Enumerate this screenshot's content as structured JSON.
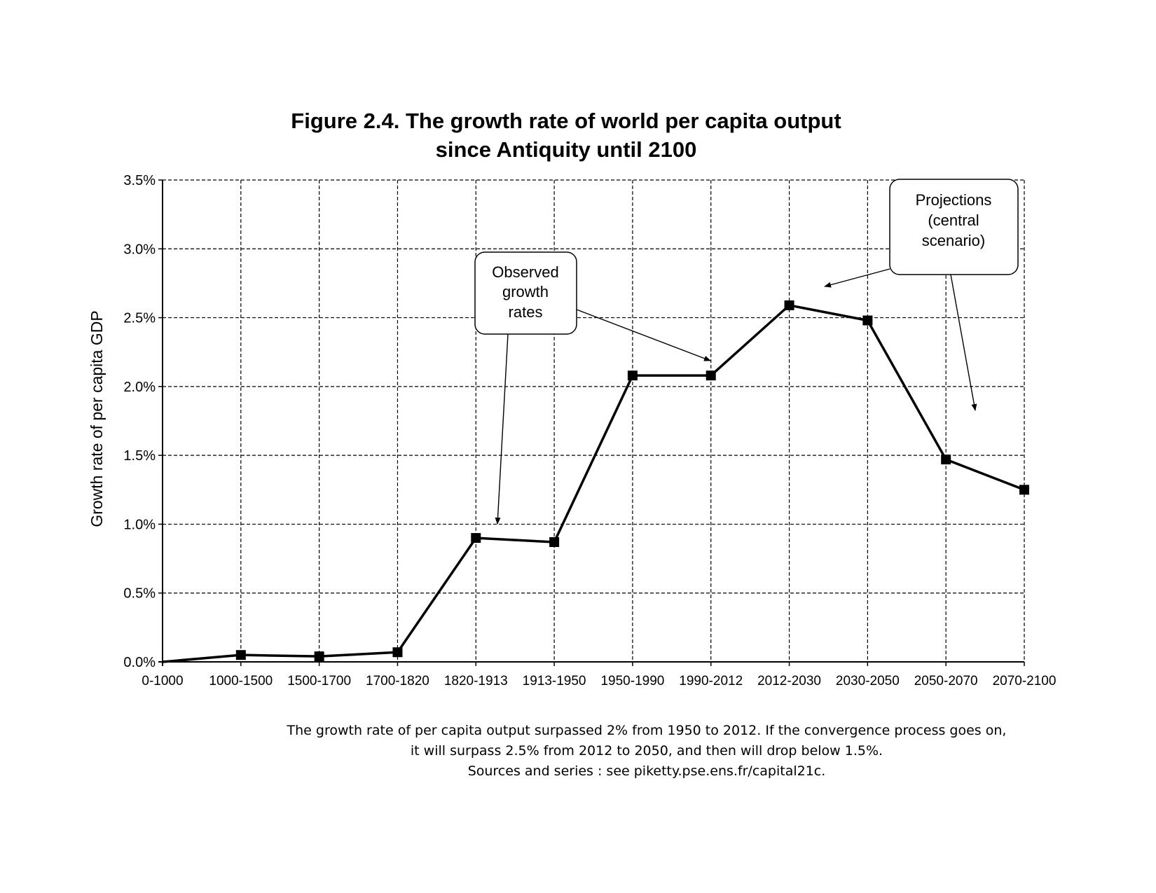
{
  "chart_data": {
    "type": "line",
    "title_lines": [
      "Figure 2.4. The growth rate of world per capita output",
      "since Antiquity until 2100"
    ],
    "ylabel": "Growth rate of per capita GDP",
    "xlabel": "",
    "ylim": [
      0,
      3.5
    ],
    "y_ticks": [
      "0.0%",
      "0.5%",
      "1.0%",
      "1.5%",
      "2.0%",
      "2.5%",
      "3.0%",
      "3.5%"
    ],
    "y_tick_values": [
      0,
      0.5,
      1.0,
      1.5,
      2.0,
      2.5,
      3.0,
      3.5
    ],
    "grid": true,
    "grid_style": "dashed",
    "categories": [
      "0-1000",
      "1000-1500",
      "1500-1700",
      "1700-1820",
      "1820-1913",
      "1913-1950",
      "1950-1990",
      "1990-2012",
      "2012-2030",
      "2030-2050",
      "2050-2070",
      "2070-2100"
    ],
    "series": [
      {
        "values": [
          0.0,
          0.05,
          0.04,
          0.07,
          0.9,
          0.87,
          2.08,
          2.08,
          2.59,
          2.48,
          1.47,
          1.25
        ],
        "color": "#000000",
        "marker": "square"
      }
    ],
    "annotations": [
      {
        "lines": [
          "Observed",
          "growth",
          "rates"
        ]
      },
      {
        "lines": [
          "Projections",
          "(central",
          "scenario)"
        ]
      }
    ]
  },
  "caption": [
    "The growth rate of per capita output surpassed 2% from 1950 to 2012. If the convergence process goes on,",
    "it will surpass 2.5% from 2012 to 2050, and then will drop below 1.5%.",
    "Sources and series : see piketty.pse.ens.fr/capital21c."
  ]
}
